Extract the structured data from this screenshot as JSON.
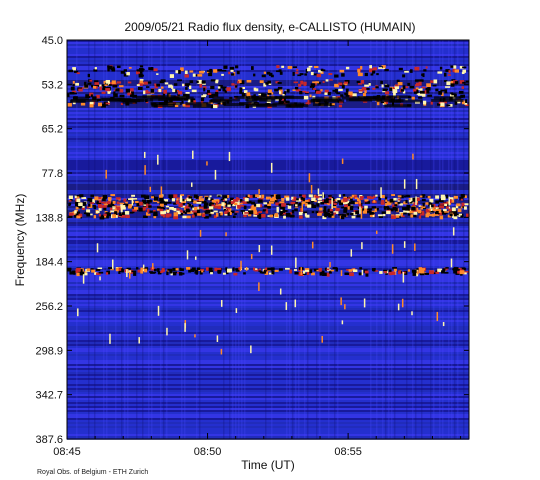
{
  "chart_data": {
    "type": "heatmap",
    "title": "2009/05/21  Radio flux density, e-CALLISTO (HUMAIN)",
    "xlabel": "Time (UT)",
    "ylabel": "Frequency (MHz)",
    "x_ticks": [
      "08:45",
      "08:50",
      "08:55"
    ],
    "x_tick_minutes": [
      0,
      5,
      10
    ],
    "x_range_minutes": [
      0,
      14.3
    ],
    "y_ticks": [
      "45.0",
      "53.2",
      "65.2",
      "77.8",
      "138.8",
      "184.4",
      "256.2",
      "298.9",
      "342.7",
      "387.6"
    ],
    "y_direction": "frequency increases downward",
    "colormap": [
      "#0a0a6e",
      "#1f2fc8",
      "#3a3af0",
      "#000000",
      "#c8282a",
      "#ff8a2a",
      "#fff6b0"
    ],
    "emission_bands": [
      {
        "label": "53.2-65.2 MHz",
        "intensity": "strong"
      },
      {
        "label": "~138.8 MHz",
        "intensity": "strong"
      },
      {
        "label": "~184.4 MHz",
        "intensity": "moderate"
      }
    ],
    "credit": "Royal Obs. of Belgium - ETH Zurich"
  }
}
